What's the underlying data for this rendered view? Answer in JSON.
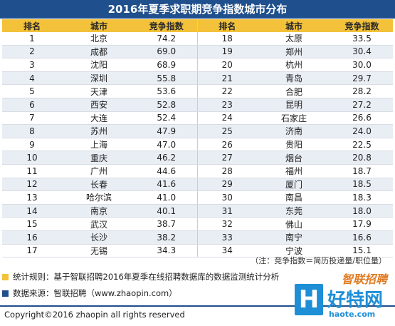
{
  "title": "2016年夏季求职期竞争指数城市分布",
  "headers": [
    "排名",
    "城市",
    "竞争指数",
    "排名",
    "城市",
    "竞争指数"
  ],
  "rows": [
    [
      "1",
      "北京",
      "74.2",
      "18",
      "太原",
      "33.5"
    ],
    [
      "2",
      "成都",
      "69.0",
      "19",
      "郑州",
      "30.4"
    ],
    [
      "3",
      "沈阳",
      "68.9",
      "20",
      "杭州",
      "30.0"
    ],
    [
      "4",
      "深圳",
      "55.8",
      "21",
      "青岛",
      "29.7"
    ],
    [
      "5",
      "天津",
      "53.6",
      "22",
      "合肥",
      "28.2"
    ],
    [
      "6",
      "西安",
      "52.8",
      "23",
      "昆明",
      "27.2"
    ],
    [
      "7",
      "大连",
      "52.4",
      "24",
      "石家庄",
      "26.6"
    ],
    [
      "8",
      "苏州",
      "47.9",
      "25",
      "济南",
      "24.0"
    ],
    [
      "9",
      "上海",
      "47.0",
      "26",
      "贵阳",
      "22.5"
    ],
    [
      "10",
      "重庆",
      "46.2",
      "27",
      "烟台",
      "20.8"
    ],
    [
      "11",
      "广州",
      "44.6",
      "28",
      "福州",
      "18.7"
    ],
    [
      "12",
      "长春",
      "41.6",
      "29",
      "厦门",
      "18.5"
    ],
    [
      "13",
      "哈尔滨",
      "41.0",
      "30",
      "南昌",
      "18.3"
    ],
    [
      "14",
      "南京",
      "40.1",
      "31",
      "东莞",
      "18.0"
    ],
    [
      "15",
      "武汉",
      "38.7",
      "32",
      "佛山",
      "17.9"
    ],
    [
      "16",
      "长沙",
      "38.2",
      "33",
      "南宁",
      "16.6"
    ],
    [
      "17",
      "无锡",
      "34.3",
      "34",
      "宁波",
      "15.1"
    ]
  ],
  "note": "（注：竞争指数＝简历投递量/职位量）",
  "legend": {
    "rule_text": "统计规则：基于智联招聘2016年夏季在线招聘数据库的数据监测统计分析",
    "rule_color": "#f3c23a",
    "source_text": "数据来源：智联招聘（www.zhaopin.com）",
    "source_color": "#1f4f8c"
  },
  "copyright": "Copyright©2016 zhaopin all rights reserved",
  "watermark": {
    "logo_letter": "H",
    "brand": "智联招聘",
    "name": "好特网",
    "url": "haote.com"
  },
  "colors": {
    "header_bar": "#1f4f8c",
    "column_header": "#f3c23a",
    "alt_row": "#e9eef5"
  }
}
